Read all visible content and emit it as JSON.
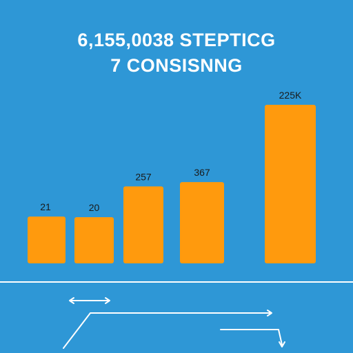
{
  "chart_data": {
    "type": "bar",
    "title": "6,155,0038 STEPTICG",
    "subtitle": "7 CONSISNNG",
    "categories": [
      "",
      "",
      "",
      "",
      ""
    ],
    "values": [
      21,
      20,
      257,
      367,
      225000
    ],
    "data_labels": [
      "21",
      "20",
      "257",
      "367",
      "225K"
    ],
    "xlabel": "",
    "ylabel": "",
    "grid": false,
    "legend": "none",
    "bar_color": "#ff9a0d",
    "background_color": "#2e97d6",
    "axis_color": "#ffffff"
  }
}
